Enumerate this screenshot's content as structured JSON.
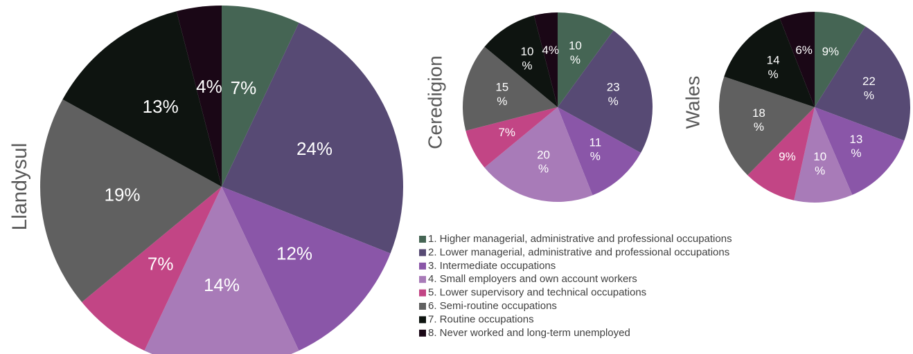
{
  "chart_data": [
    {
      "type": "pie",
      "title": "Llandysul",
      "values": [
        7,
        24,
        12,
        14,
        7,
        19,
        13,
        4
      ],
      "value_labels": [
        "7%",
        "24%",
        "12%",
        "14%",
        "7%",
        "19%",
        "13%",
        "4%"
      ]
    },
    {
      "type": "pie",
      "title": "Ceredigion",
      "values": [
        10,
        23,
        11,
        20,
        7,
        15,
        10,
        4
      ],
      "value_labels": [
        "10%",
        "23%",
        "11%",
        "20%",
        "7%",
        "15%",
        "10%",
        "4%"
      ]
    },
    {
      "type": "pie",
      "title": "Wales",
      "values": [
        9,
        22,
        13,
        10,
        9,
        18,
        14,
        6
      ],
      "value_labels": [
        "9%",
        "22%",
        "13%",
        "10%",
        "9%",
        "18%",
        "14%",
        "6%"
      ]
    }
  ],
  "legend": {
    "categories": [
      "1. Higher managerial, administrative and professional occupations",
      "2. Lower managerial, administrative and professional occupations",
      "3. Intermediate occupations",
      "4. Small employers and own account workers",
      "5. Lower supervisory and technical occupations",
      "6. Semi-routine occupations",
      "7. Routine occupations",
      "8. Never worked and long-term unemployed"
    ],
    "colors": [
      "#456554",
      "#574a74",
      "#8a56a8",
      "#a87bb8",
      "#c24585",
      "#606060",
      "#0e1410",
      "#1a0716"
    ]
  }
}
